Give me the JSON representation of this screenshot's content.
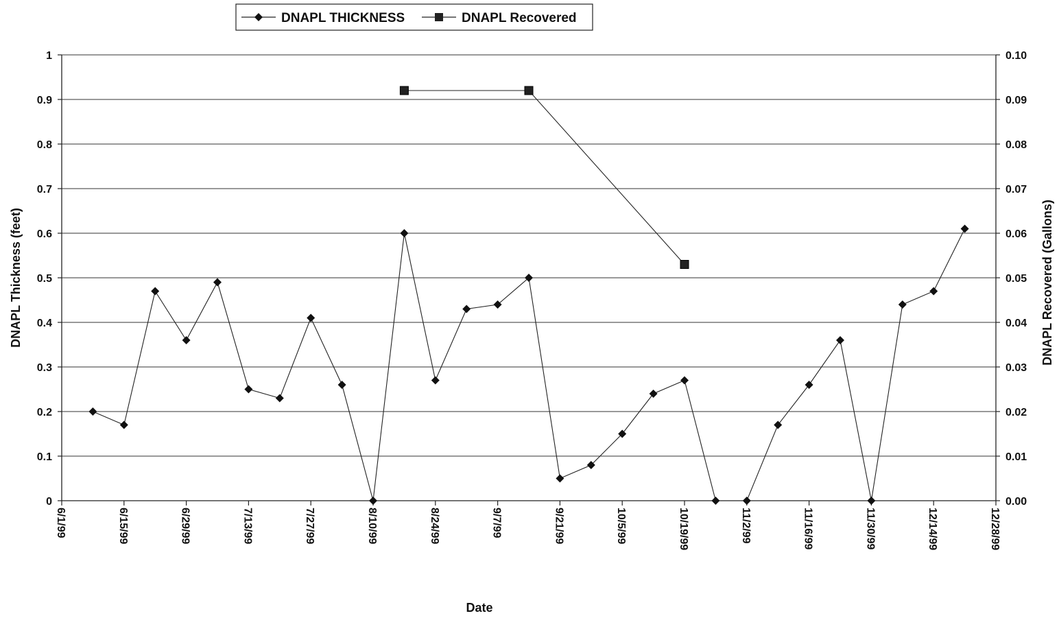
{
  "chart_data": {
    "type": "line",
    "title": "",
    "xlabel": "Date",
    "ylabel_left": "DNAPL Thickness (feet)",
    "ylabel_right": "DNAPL Recovered (Gallons)",
    "x_tick_labels": [
      "6/1/99",
      "6/15/99",
      "6/29/99",
      "7/13/99",
      "7/27/99",
      "8/10/99",
      "8/24/99",
      "9/7/99",
      "9/21/99",
      "10/5/99",
      "10/19/99",
      "11/2/99",
      "11/16/99",
      "11/30/99",
      "12/14/99",
      "12/28/99"
    ],
    "xlim": [
      "1999-06-01",
      "1999-12-28"
    ],
    "y_left_ticks": [
      "0",
      "0.1",
      "0.2",
      "0.3",
      "0.4",
      "0.5",
      "0.6",
      "0.7",
      "0.8",
      "0.9",
      "1"
    ],
    "y_right_ticks": [
      "0.00",
      "0.01",
      "0.02",
      "0.03",
      "0.04",
      "0.05",
      "0.06",
      "0.07",
      "0.08",
      "0.09",
      "0.10"
    ],
    "ylim_left": [
      0,
      1
    ],
    "ylim_right": [
      0,
      0.1
    ],
    "grid": true,
    "legend_position": "top-center",
    "series": [
      {
        "name": "DNAPL THICKNESS",
        "axis": "left",
        "marker": "diamond",
        "color": "#111111",
        "points": [
          {
            "x": "1999-06-08",
            "y": 0.2
          },
          {
            "x": "1999-06-15",
            "y": 0.17
          },
          {
            "x": "1999-06-22",
            "y": 0.47
          },
          {
            "x": "1999-06-29",
            "y": 0.36
          },
          {
            "x": "1999-07-06",
            "y": 0.49
          },
          {
            "x": "1999-07-13",
            "y": 0.25
          },
          {
            "x": "1999-07-20",
            "y": 0.23
          },
          {
            "x": "1999-07-27",
            "y": 0.41
          },
          {
            "x": "1999-08-03",
            "y": 0.26
          },
          {
            "x": "1999-08-10",
            "y": 0.0
          },
          {
            "x": "1999-08-17",
            "y": 0.6
          },
          {
            "x": "1999-08-24",
            "y": 0.27
          },
          {
            "x": "1999-08-31",
            "y": 0.43
          },
          {
            "x": "1999-09-07",
            "y": 0.44
          },
          {
            "x": "1999-09-14",
            "y": 0.5
          },
          {
            "x": "1999-09-21",
            "y": 0.05
          },
          {
            "x": "1999-09-28",
            "y": 0.08
          },
          {
            "x": "1999-10-05",
            "y": 0.15
          },
          {
            "x": "1999-10-12",
            "y": 0.24
          },
          {
            "x": "1999-10-19",
            "y": 0.27
          },
          {
            "x": "1999-10-26",
            "y": 0.0
          },
          {
            "x": "1999-11-02",
            "y": 0.0
          },
          {
            "x": "1999-11-09",
            "y": 0.17
          },
          {
            "x": "1999-11-16",
            "y": 0.26
          },
          {
            "x": "1999-11-23",
            "y": 0.36
          },
          {
            "x": "1999-11-30",
            "y": 0.0
          },
          {
            "x": "1999-12-07",
            "y": 0.44
          },
          {
            "x": "1999-12-14",
            "y": 0.47
          },
          {
            "x": "1999-12-21",
            "y": 0.61
          }
        ]
      },
      {
        "name": "DNAPL Recovered",
        "axis": "right",
        "marker": "square",
        "color": "#111111",
        "points": [
          {
            "x": "1999-08-17",
            "y": 0.092
          },
          {
            "x": "1999-09-14",
            "y": 0.092
          },
          {
            "x": "1999-10-19",
            "y": 0.053
          }
        ]
      }
    ]
  }
}
